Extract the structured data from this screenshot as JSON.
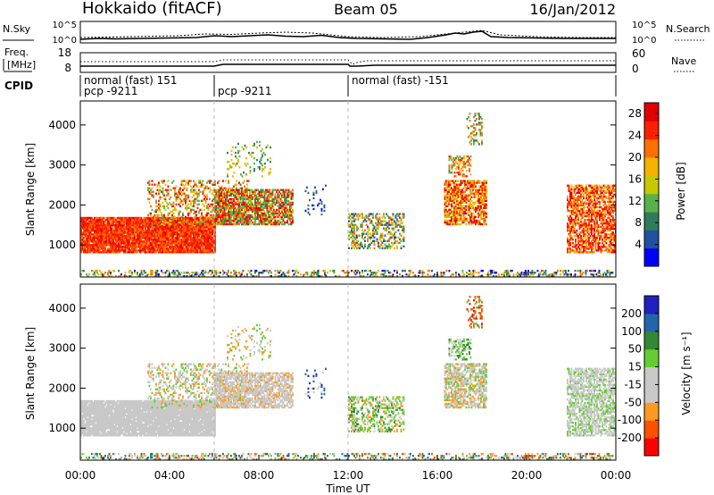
{
  "header": {
    "station": "Hokkaido (fitACF)",
    "beam": "Beam 05",
    "date": "16/Jan/2012"
  },
  "top_panels": {
    "nsky_label": "N.Sky",
    "nsearch_label": "N.Search",
    "noise_ticks": [
      "10^5",
      "10^0"
    ],
    "freq_label": "Freq.",
    "freq_unit": "[MHz]",
    "freq_ticks_left": [
      "18",
      "8"
    ],
    "nave_label": "Nave",
    "nave_ticks_right": [
      "60",
      "0"
    ],
    "cpid_label": "CPID",
    "cpid_segments": [
      {
        "line1": "normal (fast) 151",
        "line2": "pcp -9211"
      },
      {
        "line1": "",
        "line2": "pcp -9211"
      },
      {
        "line1": "normal (fast) -151",
        "line2": ""
      }
    ]
  },
  "colors": {
    "power": [
      "#0000ff",
      "#2050a0",
      "#2e7d5a",
      "#58b24a",
      "#c8c800",
      "#f5b000",
      "#ff7000",
      "#ff2000",
      "#e00000"
    ],
    "velocity": [
      "#ff0000",
      "#ff5000",
      "#ff9a20",
      "#c8c8c8",
      "#c8c8c8",
      "#66cc33",
      "#338833",
      "#2266aa",
      "#2020c0"
    ]
  },
  "chart_data": [
    {
      "type": "heatmap",
      "title": "",
      "xlabel": "",
      "ylabel": "Slant Range [km]",
      "x_ticks": [
        "00:00",
        "04:00",
        "08:00",
        "12:00",
        "16:00",
        "20:00",
        "00:00"
      ],
      "xlim_hours": [
        0,
        24
      ],
      "y_ticks": [
        1000,
        2000,
        3000,
        4000
      ],
      "ylim_km": [
        200,
        4600
      ],
      "colorbar": {
        "label": "Power [dB]",
        "ticks": [
          4,
          8,
          12,
          16,
          20,
          24,
          28
        ],
        "range": [
          0,
          30
        ]
      },
      "dashed_vlines_hours": [
        6,
        12
      ]
    },
    {
      "type": "heatmap",
      "title": "",
      "xlabel": "Time UT",
      "ylabel": "Slant Range [km]",
      "x_ticks": [
        "00:00",
        "04:00",
        "08:00",
        "12:00",
        "16:00",
        "20:00",
        "00:00"
      ],
      "xlim_hours": [
        0,
        24
      ],
      "y_ticks": [
        1000,
        2000,
        3000,
        4000
      ],
      "ylim_km": [
        200,
        4600
      ],
      "colorbar": {
        "label": "Velocity [m s⁻¹]",
        "ticks": [
          200,
          100,
          50,
          15,
          -15,
          -50,
          -100,
          -200
        ],
        "range": [
          -250,
          250
        ]
      },
      "dashed_vlines_hours": [
        6,
        12
      ]
    }
  ]
}
